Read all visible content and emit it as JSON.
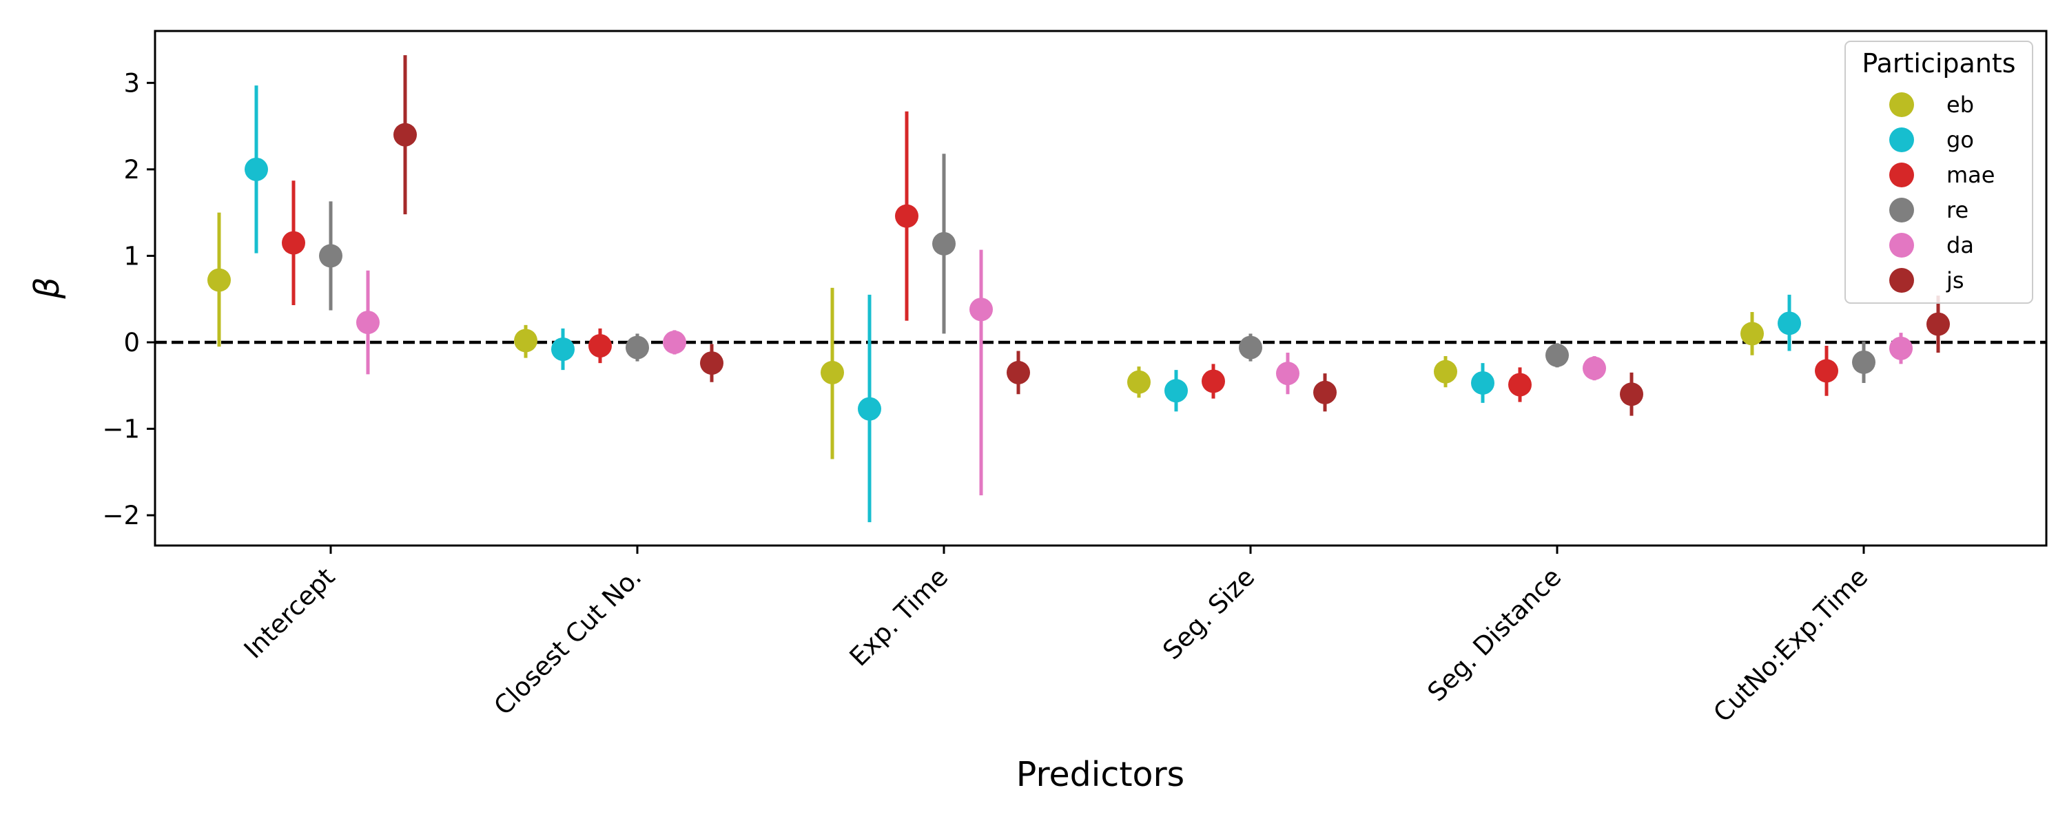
{
  "chart_data": {
    "type": "scatter",
    "xlabel": "Predictors",
    "ylabel": "β",
    "ylim": [
      -2.35,
      3.6
    ],
    "yticks": [
      {
        "value": 3,
        "label": "3"
      },
      {
        "value": 2,
        "label": "2"
      },
      {
        "value": 1,
        "label": "1"
      },
      {
        "value": 0,
        "label": "0"
      },
      {
        "value": -1,
        "label": "−1"
      },
      {
        "value": -2,
        "label": "−2"
      }
    ],
    "categories": [
      "Intercept",
      "Closest Cut No.",
      "Exp. Time",
      "Seg. Size",
      "Seg. Distance",
      "CutNo:Exp.Time"
    ],
    "reference_line": 0,
    "legend": {
      "title": "Participants",
      "position": "top-right"
    },
    "series": [
      {
        "name": "eb",
        "color": "#bcbd22",
        "values": [
          0.72,
          0.02,
          -0.35,
          -0.46,
          -0.34,
          0.1
        ],
        "lower": [
          -0.05,
          -0.18,
          -1.35,
          -0.64,
          -0.52,
          -0.15
        ],
        "upper": [
          1.5,
          0.2,
          0.63,
          -0.28,
          -0.16,
          0.35
        ]
      },
      {
        "name": "go",
        "color": "#17becf",
        "values": [
          2.0,
          -0.08,
          -0.77,
          -0.56,
          -0.47,
          0.22
        ],
        "lower": [
          1.03,
          -0.32,
          -2.08,
          -0.8,
          -0.7,
          -0.1
        ],
        "upper": [
          2.97,
          0.16,
          0.55,
          -0.32,
          -0.24,
          0.55
        ]
      },
      {
        "name": "mae",
        "color": "#d62728",
        "values": [
          1.15,
          -0.04,
          1.46,
          -0.45,
          -0.49,
          -0.33
        ],
        "lower": [
          0.43,
          -0.24,
          0.25,
          -0.65,
          -0.69,
          -0.62
        ],
        "upper": [
          1.87,
          0.16,
          2.67,
          -0.25,
          -0.29,
          -0.04
        ]
      },
      {
        "name": "re",
        "color": "#7f7f7f",
        "values": [
          1.0,
          -0.06,
          1.14,
          -0.06,
          -0.15,
          -0.23
        ],
        "lower": [
          0.37,
          -0.22,
          0.1,
          -0.22,
          -0.29,
          -0.47
        ],
        "upper": [
          1.63,
          0.1,
          2.18,
          0.1,
          -0.01,
          0.01
        ]
      },
      {
        "name": "da",
        "color": "#e377c2",
        "values": [
          0.23,
          0.0,
          0.38,
          -0.36,
          -0.3,
          -0.07
        ],
        "lower": [
          -0.37,
          -0.14,
          -1.77,
          -0.6,
          -0.44,
          -0.25
        ],
        "upper": [
          0.83,
          0.14,
          1.07,
          -0.12,
          -0.16,
          0.11
        ]
      },
      {
        "name": "js",
        "color": "#a52a2a",
        "values": [
          2.4,
          -0.24,
          -0.35,
          -0.58,
          -0.6,
          0.21
        ],
        "lower": [
          1.48,
          -0.46,
          -0.6,
          -0.8,
          -0.85,
          -0.12
        ],
        "upper": [
          3.32,
          -0.02,
          -0.1,
          -0.36,
          -0.35,
          0.54
        ]
      }
    ]
  }
}
